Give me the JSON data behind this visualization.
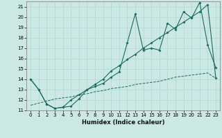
{
  "xlabel": "Humidex (Indice chaleur)",
  "bg_color": "#cce8e4",
  "grid_color": "#b0d8d4",
  "line_color": "#1a6b5a",
  "xlim": [
    -0.5,
    23.5
  ],
  "ylim": [
    11,
    21.5
  ],
  "xticks": [
    0,
    1,
    2,
    3,
    4,
    5,
    6,
    7,
    8,
    9,
    10,
    11,
    12,
    13,
    14,
    15,
    16,
    17,
    18,
    19,
    20,
    21,
    22,
    23
  ],
  "yticks": [
    11,
    12,
    13,
    14,
    15,
    16,
    17,
    18,
    19,
    20,
    21
  ],
  "line1_x": [
    0,
    1,
    2,
    3,
    4,
    5,
    6,
    7,
    8,
    9,
    10,
    11,
    12,
    13,
    14,
    15,
    16,
    17,
    18,
    19,
    20,
    21,
    22,
    23
  ],
  "line1_y": [
    14.0,
    13.0,
    11.6,
    11.2,
    11.3,
    11.4,
    12.1,
    13.0,
    13.3,
    13.6,
    14.2,
    14.7,
    17.5,
    20.3,
    16.8,
    17.0,
    16.8,
    19.4,
    18.8,
    20.5,
    19.9,
    21.4,
    17.3,
    15.1
  ],
  "line2_x": [
    0,
    1,
    2,
    3,
    4,
    5,
    6,
    7,
    8,
    9,
    10,
    11,
    12,
    13,
    14,
    15,
    16,
    17,
    18,
    19,
    20,
    21,
    22,
    23
  ],
  "line2_y": [
    14.0,
    13.0,
    11.6,
    11.2,
    11.3,
    12.0,
    12.5,
    13.0,
    13.5,
    14.0,
    14.8,
    15.3,
    15.9,
    16.4,
    17.0,
    17.5,
    18.0,
    18.5,
    19.0,
    19.5,
    20.0,
    20.5,
    21.2,
    14.1
  ],
  "line3_x": [
    0,
    1,
    2,
    3,
    4,
    5,
    6,
    7,
    8,
    9,
    10,
    11,
    12,
    13,
    14,
    15,
    16,
    17,
    18,
    19,
    20,
    21,
    22,
    23
  ],
  "line3_y": [
    11.5,
    11.7,
    11.9,
    12.1,
    12.2,
    12.3,
    12.5,
    12.6,
    12.8,
    12.9,
    13.1,
    13.2,
    13.3,
    13.5,
    13.6,
    13.7,
    13.8,
    14.0,
    14.2,
    14.3,
    14.4,
    14.5,
    14.6,
    14.1
  ]
}
